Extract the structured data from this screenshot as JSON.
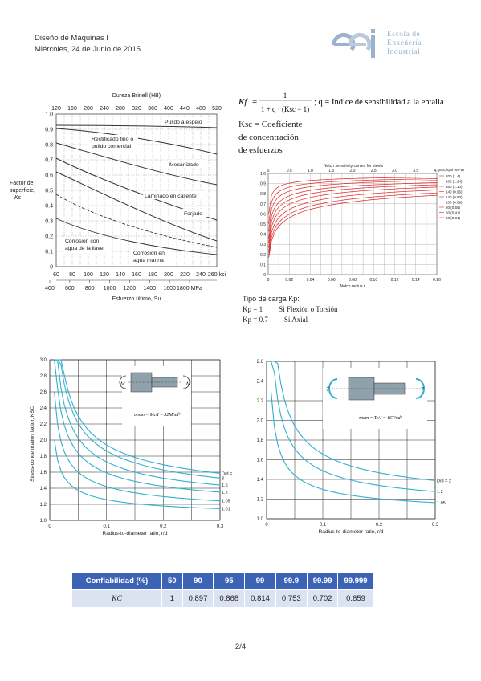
{
  "header": {
    "line1": "Diseño de Máquinas I",
    "line2": "Miércoles, 24 de Junio de 2015"
  },
  "logo": {
    "mark": "eei",
    "lines": [
      "Escola de",
      "Enxeñería",
      "Industrial"
    ]
  },
  "fig_surface": {
    "top_label": "Dureza Brinell (HB)",
    "top_ticks": [
      "120",
      "160",
      "200",
      "240",
      "280",
      "320",
      "360",
      "400",
      "440",
      "480",
      "520"
    ],
    "y_ticks": [
      "0",
      "0.1",
      "0.2",
      "0.3",
      "0.4",
      "0.5",
      "0.6",
      "0.7",
      "0.8",
      "0.9",
      "1.0"
    ],
    "y_label": [
      "Factor de",
      "superficie,",
      "Ks"
    ],
    "ksi_ticks": [
      "60",
      "80",
      "100",
      "120",
      "140",
      "160",
      "180",
      "200",
      "220",
      "240",
      "260 ksi"
    ],
    "mpa_ticks": [
      "400",
      "600",
      "800",
      "1000",
      "1200",
      "1400",
      "1600",
      "1800 MPa"
    ],
    "x_label": "Esfuerzo último, Su",
    "curves": [
      "Pulido a espejo",
      "Rectificado fino o pulido comercial",
      "Mecanizado",
      "Laminado en caliente",
      "Forjado",
      "Corrosión con agua de la llave",
      "Corrosión en agua marina"
    ]
  },
  "formula": {
    "lhs": "Kf",
    "eq": "=",
    "num": "1",
    "den": "1 + q · (Ksc − 1)",
    "desc": "; q = Indice de sensibilidad a la entalla"
  },
  "ksc": {
    "line1": "Ksc = Coeficiente",
    "line2": "de concentración",
    "line3": "de esfuerzos"
  },
  "fig_notch": {
    "title": "Notch sensitivity curves for steels",
    "top_ticks": [
      "0",
      "0.5",
      "1.0",
      "1.5",
      "2.0",
      "2.5",
      "3.0",
      "3.5",
      "4.0"
    ],
    "y_ticks": [
      "0",
      "0.1",
      "0.2",
      "0.3",
      "0.4",
      "0.5",
      "0.6",
      "0.7",
      "0.8",
      "0.9",
      "1.0"
    ],
    "x_ticks": [
      "0",
      "0.02",
      "0.04",
      "0.06",
      "0.08",
      "0.10",
      "0.12",
      "0.14",
      "0.16"
    ],
    "x_label": "Notch radius r",
    "legend_title": "Sut, kpsi (MPa)",
    "legend": [
      "200 (1.4)",
      "180 (1.24)",
      "160 (1.10)",
      "140 (0.96)",
      "120 (0.83)",
      "100 (0.69)",
      "80 (0.55)",
      "60 (0.41)",
      "50 (0.34)"
    ]
  },
  "tipo_carga": {
    "title": "Tipo de carga  Kp:",
    "rows": [
      {
        "k": "Kp = 1",
        "v": "Si Flexión o Torsión"
      },
      {
        "k": "Kp = 0.7",
        "v": "Si Axial"
      }
    ]
  },
  "fig_bending": {
    "y_ticks": [
      "1.0",
      "1.2",
      "1.4",
      "1.6",
      "1.8",
      "2.0",
      "2.2",
      "2.4",
      "2.6",
      "2.8",
      "3.0"
    ],
    "x_ticks": [
      "0",
      "0.1",
      "0.2",
      "0.3"
    ],
    "y_label": "Stress-concentration factor, KSC",
    "x_label": "Radius-to-diameter ratio, r/d",
    "curve_labels": [
      "D/d = 6",
      "3",
      "1.5",
      "1.2",
      "1.05",
      "1.01"
    ],
    "formula": "σnom = Mc/I = 32M/πd³",
    "moment": "M"
  },
  "fig_torsion": {
    "y_ticks": [
      "1.0",
      "1.2",
      "1.4",
      "1.6",
      "1.8",
      "2.0",
      "2.2",
      "2.4",
      "2.6"
    ],
    "x_ticks": [
      "0",
      "0.1",
      "0.2",
      "0.3"
    ],
    "x_label": "Radius-to-diameter ratio, r/d",
    "curve_labels": [
      "D/d = 2",
      "1.2",
      "1.05"
    ],
    "formula": "τnom = Tc/J = 16T/πd³",
    "torque": "T"
  },
  "confiabilidad": {
    "headers": [
      "Confiabilidad (%)",
      "50",
      "90",
      "95",
      "99",
      "99.9",
      "99.99",
      "99.999"
    ],
    "row_label": "KC",
    "values": [
      "1",
      "0.897",
      "0.868",
      "0.814",
      "0.753",
      "0.702",
      "0.659"
    ]
  },
  "page": {
    "number": "2/4"
  }
}
